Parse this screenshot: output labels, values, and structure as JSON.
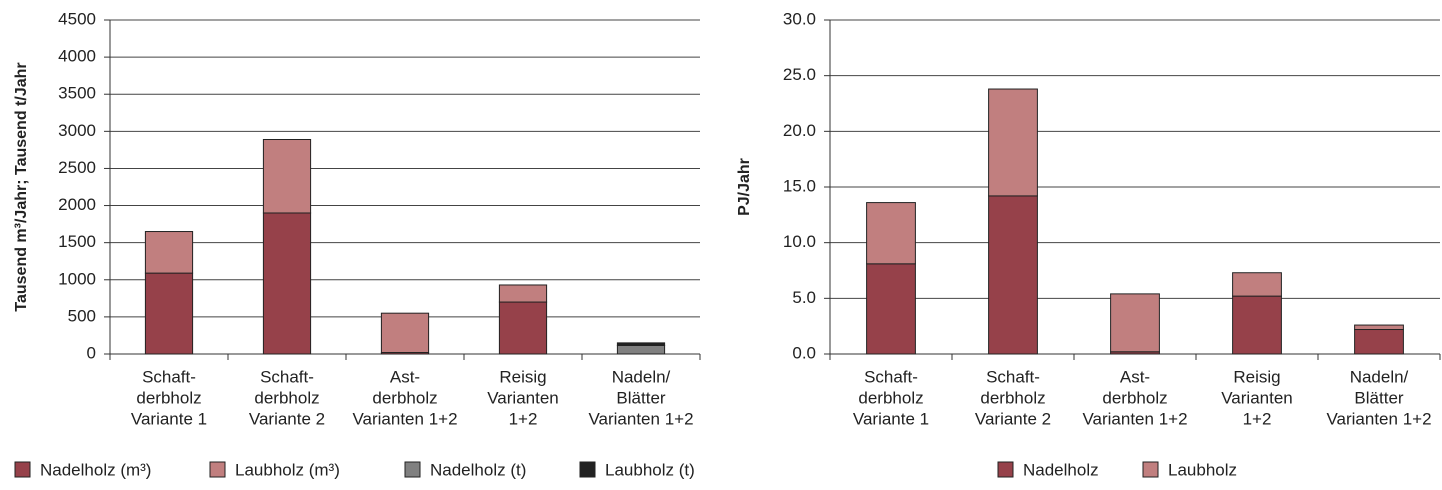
{
  "chart_data": [
    {
      "type": "bar",
      "stacked": true,
      "ylabel": "Tausend m³/Jahr; Tausend t/Jahr",
      "categories": [
        [
          "Schaft-",
          "derbholz",
          "Variante 1"
        ],
        [
          "Schaft-",
          "derbholz",
          "Variante 2"
        ],
        [
          "Ast-",
          "derbholz",
          "Varianten 1+2"
        ],
        [
          "Reisig",
          "Varianten",
          "1+2"
        ],
        [
          "Nadeln/",
          "Blätter",
          "Varianten 1+2"
        ]
      ],
      "series": [
        {
          "name": "Nadelholz (m³)",
          "color": "#96414a",
          "values": [
            1090,
            1900,
            20,
            700,
            0
          ]
        },
        {
          "name": "Laubholz (m³)",
          "color": "#c17f7f",
          "values": [
            560,
            990,
            530,
            230,
            0
          ]
        },
        {
          "name": "Nadelholz (t)",
          "color": "#808080",
          "values": [
            0,
            0,
            0,
            0,
            115
          ]
        },
        {
          "name": "Laubholz (t)",
          "color": "#222222",
          "values": [
            0,
            0,
            0,
            0,
            35
          ]
        }
      ],
      "ylim": [
        0,
        4500
      ],
      "yticks": [
        0,
        500,
        1000,
        1500,
        2000,
        2500,
        3000,
        3500,
        4000,
        4500
      ],
      "grid": true
    },
    {
      "type": "bar",
      "stacked": true,
      "ylabel": "PJ/Jahr",
      "categories": [
        [
          "Schaft-",
          "derbholz",
          "Variante 1"
        ],
        [
          "Schaft-",
          "derbholz",
          "Variante 2"
        ],
        [
          "Ast-",
          "derbholz",
          "Varianten 1+2"
        ],
        [
          "Reisig",
          "Varianten",
          "1+2"
        ],
        [
          "Nadeln/",
          "Blätter",
          "Varianten 1+2"
        ]
      ],
      "series": [
        {
          "name": "Nadelholz",
          "color": "#96414a",
          "values": [
            8.1,
            14.2,
            0.2,
            5.2,
            2.2
          ]
        },
        {
          "name": "Laubholz",
          "color": "#c17f7f",
          "values": [
            5.5,
            9.6,
            5.2,
            2.1,
            0.4
          ]
        }
      ],
      "ylim": [
        0,
        30
      ],
      "yticks": [
        {
          "value": 0,
          "label": "0.0"
        },
        {
          "value": 5,
          "label": "5.0"
        },
        {
          "value": 10,
          "label": "10.0"
        },
        {
          "value": 15,
          "label": "15.0"
        },
        {
          "value": 20,
          "label": "20.0"
        },
        {
          "value": 25,
          "label": "25.0"
        },
        {
          "value": 30,
          "label": "30.0"
        }
      ],
      "grid": true
    }
  ]
}
